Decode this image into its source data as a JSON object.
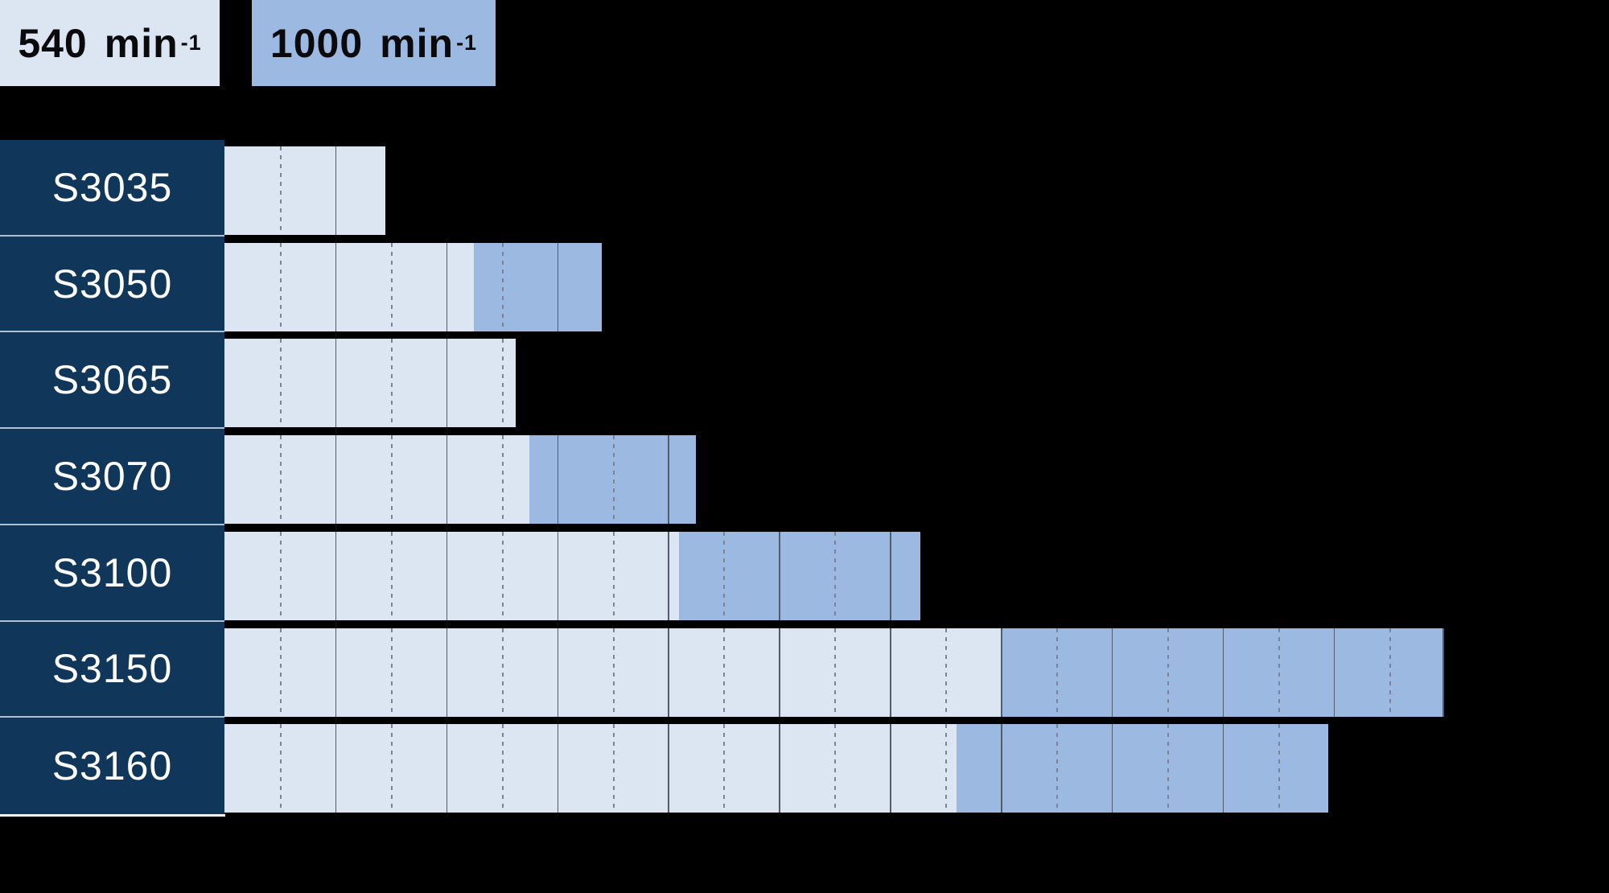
{
  "page": {
    "background": "#000000"
  },
  "legend": {
    "position": "top-left",
    "items": [
      {
        "value": "540",
        "unit": "min",
        "exponent": "-1",
        "swatch": "#dce6f3",
        "text_color": "#0a0a0c"
      },
      {
        "value": "1000",
        "unit": "min",
        "exponent": "-1",
        "swatch": "#9cb9e1",
        "text_color": "#0a0a0c"
      }
    ]
  },
  "chart_data": {
    "type": "bar",
    "orientation": "horizontal",
    "title": "",
    "xlabel": "",
    "ylabel": "",
    "categories": [
      "S3035",
      "S3050",
      "S3065",
      "S3070",
      "S3100",
      "S3150",
      "S3160"
    ],
    "series": [
      {
        "name": "540 min⁻¹",
        "color": "#dce6f3",
        "ranges": [
          [
            0,
            29
          ],
          [
            0,
            45
          ],
          [
            0,
            52.5
          ],
          [
            0,
            55
          ],
          [
            0,
            82
          ],
          [
            0,
            140
          ],
          [
            0,
            132
          ]
        ]
      },
      {
        "name": "1000 min⁻¹",
        "color": "#9cb9e1",
        "ranges": [
          null,
          [
            45,
            68
          ],
          null,
          [
            55,
            85
          ],
          [
            82,
            125.5
          ],
          [
            140,
            220
          ],
          [
            132,
            199
          ]
        ]
      }
    ],
    "xlim": [
      0,
      250
    ],
    "grid": {
      "division": 10,
      "dashed_lines_at": "odd multiples of 10",
      "solid_lines_at": "even multiples of 10",
      "axis_tick_labels_visible": false
    },
    "legend_position": "top-left"
  },
  "colors": {
    "row_label_bg": "#10365a",
    "row_label_text": "#ffffff",
    "row_separator": "#aebfd0",
    "label_column_underline": "#f4f7fb",
    "grid_solid": "#535c6a",
    "grid_dashed": "#7a8494",
    "bar_540": "#dce6f3",
    "bar_1000": "#9cb9e1",
    "background": "#000000"
  }
}
